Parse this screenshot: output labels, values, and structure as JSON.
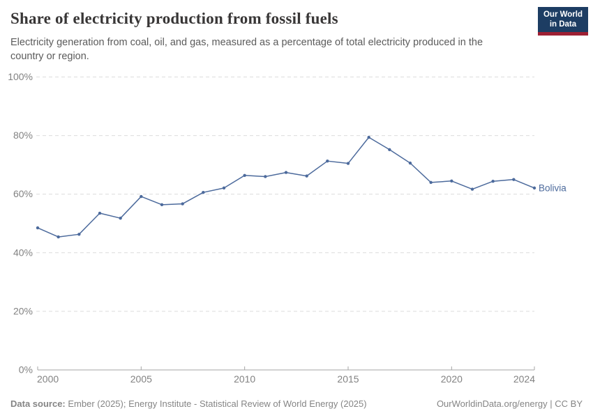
{
  "header": {
    "title": "Share of electricity production from fossil fuels",
    "subtitle": "Electricity generation from coal, oil, and gas, measured as a percentage of total electricity produced in the country or region.",
    "logo": {
      "line1": "Our World",
      "line2": "in Data"
    }
  },
  "chart_data": {
    "type": "line",
    "title": "Share of electricity production from fossil fuels",
    "xlabel": "",
    "ylabel": "",
    "x": [
      2000,
      2001,
      2002,
      2003,
      2004,
      2005,
      2006,
      2007,
      2008,
      2009,
      2010,
      2011,
      2012,
      2013,
      2014,
      2015,
      2016,
      2017,
      2018,
      2019,
      2020,
      2021,
      2022,
      2023,
      2024
    ],
    "series": [
      {
        "name": "Bolivia",
        "color": "#4c6a9c",
        "values": [
          48.5,
          45.4,
          46.3,
          53.5,
          51.8,
          59.2,
          56.4,
          56.7,
          60.6,
          62.1,
          66.4,
          66.0,
          67.4,
          66.2,
          71.3,
          70.5,
          79.4,
          75.2,
          70.6,
          64.0,
          64.5,
          61.7,
          64.4,
          65.0,
          62.1
        ]
      }
    ],
    "xlim": [
      2000,
      2024
    ],
    "ylim": [
      0,
      100
    ],
    "x_ticks": [
      2000,
      2005,
      2010,
      2015,
      2020,
      2024
    ],
    "y_ticks": [
      0,
      20,
      40,
      60,
      80,
      100
    ],
    "y_tick_suffix": "%",
    "grid": "horizontal-dashed",
    "legend": "line-end-label"
  },
  "footer": {
    "source_label": "Data source:",
    "source_text": "Ember (2025); Energy Institute - Statistical Review of World Energy (2025)",
    "link_text": "OurWorldinData.org/energy | CC BY"
  },
  "colors": {
    "line": "#4c6a9c",
    "title": "#383636",
    "subtitle": "#5b5b5b",
    "axis_text": "#828282",
    "grid": "#dcdcdc",
    "axis_line": "#a5a5a5",
    "logo_bg": "#1d3d63",
    "logo_accent": "#9e2034"
  }
}
